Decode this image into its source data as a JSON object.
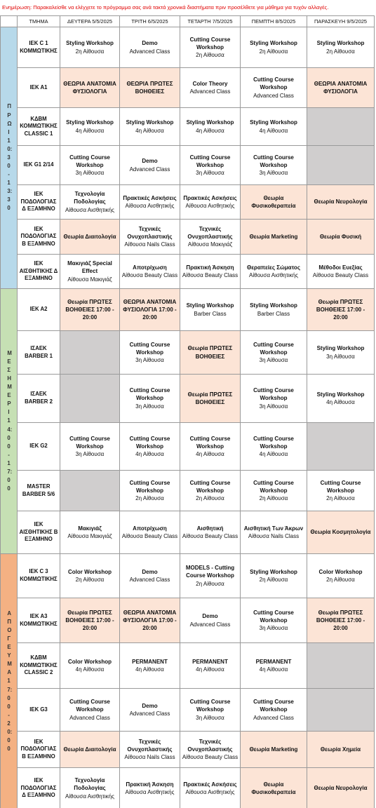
{
  "notice": "Ενημέρωση: Παρακαλείσθε να ελέγχετε το πρόγραμμα σας ανά τακτά χρονικά διαστήματα πριν προσέλθετε για μάθημα για τυχόν αλλαγές.",
  "columns": [
    "ΤΜΗΜΑ",
    "ΔΕΥΤΕΡΑ 5/5/2025",
    "ΤΡΙΤΗ 6/5/2025",
    "ΤΕΤΑΡΤΗ 7/5/2025",
    "ΠΕΜΠΤΗ 8/5/2025",
    "ΠΑΡΑΣΚΕΥΗ 9/5/2025"
  ],
  "periods": [
    {
      "label": "ΠΡΩΙ 10:30 - 13:30",
      "color": "#b7d9ea",
      "rows": [
        {
          "group": "ΙΕΚ C 1 ΚΟΜΜΩΤΙΚΗΣ",
          "cells": [
            {
              "title": "Styling Workshop",
              "sub": "2η Αίθουσα"
            },
            {
              "title": "Demo",
              "sub": "Advanced Class"
            },
            {
              "title": "Cutting Course Workshop",
              "sub": "2η Αίθουσα"
            },
            {
              "title": "Styling Workshop",
              "sub": "2η Αίθουσα"
            },
            {
              "title": "Styling Workshop",
              "sub": "2η Αίθουσα"
            }
          ]
        },
        {
          "group": "ΙΕΚ Α1",
          "cells": [
            {
              "title": "ΘΕΩΡΙΑ ΑΝΑΤΟΜΙΑ ΦΥΣΙΟΛΟΓΙΑ",
              "shade": "#fce4d6"
            },
            {
              "title": "ΘΕΩΡΙΑ ΠΡΩΤΕΣ ΒΟΗΘΕΙΕΣ",
              "shade": "#fce4d6"
            },
            {
              "title": "Color Theory",
              "sub": "Advanced Class"
            },
            {
              "title": "Cutting Course Workshop",
              "sub": "Advanced Class"
            },
            {
              "title": "ΘΕΩΡΙΑ ΑΝΑΤΟΜΙΑ ΦΥΣΙΟΛΟΓΙΑ",
              "shade": "#fce4d6"
            }
          ]
        },
        {
          "group": "ΚΔΒΜ ΚΟΜΜΩΤΙΚΗΣ CLASSIC 1",
          "cells": [
            {
              "title": "Styling Workshop",
              "sub": "4η Αίθουσα"
            },
            {
              "title": "Styling Workshop",
              "sub": "4η Αίθουσα"
            },
            {
              "title": "Styling Workshop",
              "sub": "4η Αίθουσα"
            },
            {
              "title": "Styling Workshop",
              "sub": "4η Αίθουσα"
            },
            {
              "shade": "#d0cece"
            }
          ]
        },
        {
          "group": "ΙΕΚ G1 2/14",
          "cells": [
            {
              "title": "Cutting Course Workshop",
              "sub": "3η Αίθουσα"
            },
            {
              "title": "Demo",
              "sub": "Advanced Class"
            },
            {
              "title": "Cutting Course Workshop",
              "sub": "3η Αίθουσα"
            },
            {
              "title": "Cutting Course Workshop",
              "sub": "3η Αίθουσα"
            },
            {
              "shade": "#d0cece"
            }
          ]
        },
        {
          "group": "ΙΕΚ ΠΟΔΟΛΟΓΙΑΣ Δ ΕΞΑΜΗΝΟ",
          "cells": [
            {
              "title": "Τεχνολογία Ποδολογίας",
              "sub": "Αίθουσα Αισθητικής"
            },
            {
              "title": "Πρακτικές Ασκήσεις",
              "sub": "Αίθουσα Αισθητικής"
            },
            {
              "title": "Πρακτικές Ασκήσεις",
              "sub": "Αίθουσα Αισθητικής"
            },
            {
              "title": "Θεωρία Φυσικοθεραπεία",
              "shade": "#fce4d6"
            },
            {
              "title": "Θεωρία Νευρολογία",
              "shade": "#fce4d6"
            }
          ]
        },
        {
          "group": "ΙΕΚ ΠΟΔΟΛΟΓΙΑΣ Β ΕΞΑΜΗΝΟ",
          "cells": [
            {
              "title": "Θεωρία Διαιτολογία",
              "shade": "#fce4d6"
            },
            {
              "title": "Τεχνικές Ονυχοπλαστικής",
              "sub": "Αίθουσα Nails Class"
            },
            {
              "title": "Τεχνικές Ονυχοπλαστικής",
              "sub": "Αίθουσα Μακιγιάζ"
            },
            {
              "title": "Θεωρία Marketing",
              "shade": "#fce4d6"
            },
            {
              "title": "Θεωρία Φυσική",
              "shade": "#fce4d6"
            }
          ]
        },
        {
          "group": "ΙΕΚ ΑΙΣΘΗΤΙΚΗΣ Δ ΕΞΑΜΗΝΟ",
          "cells": [
            {
              "title": "Μακιγιάζ Special Effect",
              "sub": "Αίθουσα Μακιγιάζ"
            },
            {
              "title": "Αποτρίχωση",
              "sub": "Αίθουσα Beauty Class"
            },
            {
              "title": "Πρακτική Άσκηση",
              "sub": "Αίθουσα Beauty Class"
            },
            {
              "title": "Θεραπείες Σώματος",
              "sub": "Αίθουσα Αισθητικής"
            },
            {
              "title": "Μέθοδοι Ευεξίας",
              "sub": "Αίθουσα Beauty Class"
            }
          ]
        }
      ]
    },
    {
      "label": "ΜΕΣΗΜΕΡΙ 14:00 - 17:00",
      "color": "#c6e0b4",
      "rows": [
        {
          "group": "ΙΕΚ Α2",
          "cells": [
            {
              "title": "Θεωρία ΠΡΩΤΕΣ ΒΟΗΘΕΙΕΣ 17:00 - 20:00",
              "shade": "#fce4d6"
            },
            {
              "title": "ΘΕΩΡΙΑ ΑΝΑΤΟΜΙΑ ΦΥΣΙΟΛΟΓΙΑ 17:00 - 20:00",
              "shade": "#fce4d6"
            },
            {
              "title": "Styling Workshop",
              "sub": "Barber Class"
            },
            {
              "title": "Styling Workshop",
              "sub": "Barber Class"
            },
            {
              "title": "Θεωρία ΠΡΩΤΕΣ ΒΟΗΘΕΙΕΣ 17:00 - 20:00",
              "shade": "#fce4d6"
            }
          ]
        },
        {
          "group": "ΙΣΑΕΚ BARBER 1",
          "cells": [
            {
              "shade": "#d0cece"
            },
            {
              "title": "Cutting Course Workshop",
              "sub": "3η Αίθουσα"
            },
            {
              "title": "Θεωρία ΠΡΩΤΕΣ ΒΟΗΘΕΙΕΣ",
              "shade": "#fce4d6"
            },
            {
              "title": "Cutting Course Workshop",
              "sub": "3η Αίθουσα"
            },
            {
              "title": "Styling Workshop",
              "sub": "3η Αίθουσα"
            }
          ]
        },
        {
          "group": "ΙΣΑΕΚ BARBER 2",
          "cells": [
            {
              "shade": "#d0cece"
            },
            {
              "title": "Cutting Course Workshop",
              "sub": "3η Αίθουσα"
            },
            {
              "title": "Θεωρία ΠΡΩΤΕΣ ΒΟΗΘΕΙΕΣ",
              "shade": "#fce4d6"
            },
            {
              "title": "Cutting Course Workshop",
              "sub": "3η Αίθουσα"
            },
            {
              "title": "Styling Workshop",
              "sub": "4η Αίθουσα"
            }
          ]
        },
        {
          "group": "ΙΕΚ G2",
          "cells": [
            {
              "title": "Cutting Course Workshop",
              "sub": "3η Αίθουσα"
            },
            {
              "title": "Cutting Course Workshop",
              "sub": "4η Αίθουσα"
            },
            {
              "title": "Cutting Course Workshop",
              "sub": "4η Αίθουσα"
            },
            {
              "title": "Cutting Course Workshop",
              "sub": "4η Αίθουσα"
            },
            {
              "shade": "#d0cece"
            }
          ]
        },
        {
          "group": "MASTER BARBER 5/6",
          "cells": [
            {
              "shade": "#d0cece"
            },
            {
              "title": "Cutting Course Workshop",
              "sub": "2η Αίθουσα"
            },
            {
              "title": "Cutting Course Workshop",
              "sub": "2η Αίθουσα"
            },
            {
              "title": "Cutting Course Workshop",
              "sub": "2η Αίθουσα"
            },
            {
              "title": "Cutting Course Workshop",
              "sub": "2η Αίθουσα"
            }
          ]
        },
        {
          "group": "ΙΕΚ ΑΙΣΘΗΤΙΚΗΣ Β ΕΞΑΜΗΝΟ",
          "cells": [
            {
              "title": "Μακιγιάζ",
              "sub": "Αίθουσα Μακιγιάζ"
            },
            {
              "title": "Αποτρίχωση",
              "sub": "Αίθουσα Beauty Class"
            },
            {
              "title": "Αισθητική",
              "sub": "Αίθουσα Beauty Class"
            },
            {
              "title": "Αισθητική Των Άκρων",
              "sub": "Αίθουσα Nails Class"
            },
            {
              "title": "Θεωρία Κοσμητολογία",
              "shade": "#fce4d6"
            }
          ]
        }
      ]
    },
    {
      "label": "ΑΠΟΓΕΥΜΑ 17:00 - 20:00",
      "color": "#f4b183",
      "rows": [
        {
          "group": "ΙΕΚ C 3 ΚΟΜΜΩΤΙΚΗΣ",
          "cells": [
            {
              "title": "Color Workshop",
              "sub": "2η Αίθουσα"
            },
            {
              "title": "Demo",
              "sub": "Advanced Class"
            },
            {
              "title": "MODELS - Cutting Course Workshop",
              "sub": "2η Αίθουσα"
            },
            {
              "title": "Styling Workshop",
              "sub": "2η Αίθουσα"
            },
            {
              "title": "Color Workshop",
              "sub": "2η Αίθουσα"
            }
          ]
        },
        {
          "group": "ΙΕΚ Α3 ΚΟΜΜΩΤΙΚΗΣ",
          "cells": [
            {
              "title": "Θεωρία ΠΡΩΤΕΣ ΒΟΗΘΕΙΕΣ 17:00 - 20:00",
              "shade": "#fce4d6"
            },
            {
              "title": "ΘΕΩΡΙΑ ΑΝΑΤΟΜΙΑ ΦΥΣΙΟΛΟΓΙΑ 17:00 - 20:00",
              "shade": "#fce4d6"
            },
            {
              "title": "Demo",
              "sub": "Advanced Class"
            },
            {
              "title": "Cutting Course Workshop",
              "sub": "3η Αίθουσα"
            },
            {
              "title": "Θεωρία ΠΡΩΤΕΣ ΒΟΗΘΕΙΕΣ 17:00 - 20:00",
              "shade": "#fce4d6"
            }
          ]
        },
        {
          "group": "ΚΔΒΜ ΚΟΜΜΩΤΙΚΗΣ CLASSIC 2",
          "cells": [
            {
              "title": "Color Workshop",
              "sub": "4η Αίθουσα"
            },
            {
              "title": "PERMANENT",
              "sub": "4η Αίθουσα"
            },
            {
              "title": "PERMANENT",
              "sub": "4η Αίθουσα"
            },
            {
              "title": "PERMANENT",
              "sub": "4η Αίθουσα"
            },
            {
              "shade": "#d0cece"
            }
          ]
        },
        {
          "group": "ΙΕΚ G3",
          "cells": [
            {
              "title": "Cutting Course Workshop",
              "sub": "Advanced Class"
            },
            {
              "title": "Demo",
              "sub": "Advanced Class"
            },
            {
              "title": "Cutting Course Workshop",
              "sub": "3η Αίθουσα"
            },
            {
              "title": "Cutting Course Workshop",
              "sub": "Advanced Class"
            },
            {
              "shade": "#d0cece"
            }
          ]
        },
        {
          "group": "ΙΕΚ ΠΟΔΟΛΟΓΙΑΣ Β ΕΞΑΜΗΝΟ",
          "cells": [
            {
              "title": "Θεωρία Διαιτολογία",
              "shade": "#fce4d6"
            },
            {
              "title": "Τεχνικές Ονυχοπλαστικής",
              "sub": "Αίθουσα Nails Class"
            },
            {
              "title": "Τεχνικές Ονυχοπλαστικής",
              "sub": "Αίθουσα Beauty Class"
            },
            {
              "title": "Θεωρία Marketing",
              "shade": "#fce4d6"
            },
            {
              "title": "Θεωρία Χημεία",
              "shade": "#fce4d6"
            }
          ]
        },
        {
          "group": "ΙΕΚ ΠΟΔΟΛΟΓΙΑΣ Δ ΕΞΑΜΗΝΟ",
          "cells": [
            {
              "title": "Τεχνολογία Ποδολογίας",
              "sub": "Αίθουσα Αισθητικής"
            },
            {
              "title": "Πρακτική Άσκηση",
              "sub": "Αίθουσα Αισθητικής"
            },
            {
              "title": "Πρακτικές Ασκήσεις",
              "sub": "Αίθουσα Αισθητικής"
            },
            {
              "title": "Θεωρία Φυσικοθεραπεία",
              "shade": "#fce4d6"
            },
            {
              "title": "Θεωρία Νευρολογία",
              "shade": "#fce4d6"
            }
          ]
        }
      ]
    }
  ]
}
